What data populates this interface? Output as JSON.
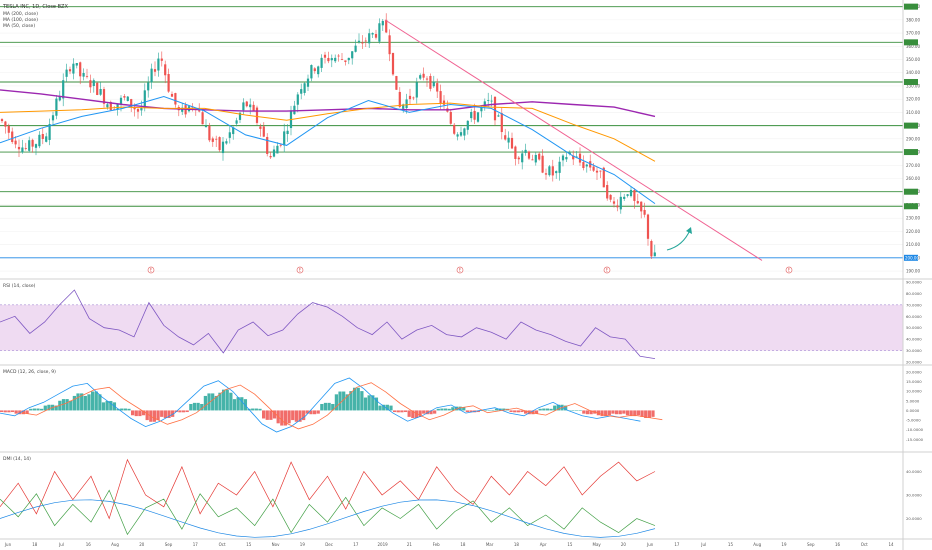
{
  "header": {
    "symbol_line": "TESLA INC, 1D, Close BZX",
    "ma_lines": [
      "MA (200, close)",
      "MA (100, close)",
      "MA (50, close)"
    ]
  },
  "indicators": {
    "rsi_label": "RSI (14, close)",
    "macd_label": "MACD (12, 26, close, 9)",
    "dmi_label": "DMI (14, 14)"
  },
  "colors": {
    "candle_up": "#26a69a",
    "candle_down": "#ef5350",
    "ma200": "#9c27b0",
    "ma100": "#ff9800",
    "ma50": "#2196f3",
    "support_lines": "#388e3c",
    "trendline": "#f06292",
    "arrow": "#26a69a",
    "rsi_band": "#e1bee7",
    "rsi_line": "#7e57c2",
    "current_price": "#1e88e5"
  },
  "chart_data": [
    {
      "type": "candlestick",
      "title": "TESLA INC, 1D, Close BZX",
      "x_ticks": [
        "Jun",
        "18",
        "Jul",
        "16",
        "Aug",
        "20",
        "Sep",
        "17",
        "Oct",
        "15",
        "Nov",
        "19",
        "Dec",
        "17",
        "2019",
        "21",
        "Feb",
        "18",
        "Mar",
        "18",
        "Apr",
        "15",
        "May",
        "20",
        "Jun",
        "17",
        "Jul",
        "15",
        "Aug",
        "19",
        "Sep",
        "16",
        "Oct",
        "14"
      ],
      "ylim": [
        187,
        392
      ],
      "y_ticks": [
        "390.00",
        "380.00",
        "370.00",
        "360.00",
        "350.00",
        "340.00",
        "330.00",
        "320.00",
        "310.00",
        "300.00",
        "290.00",
        "280.00",
        "270.00",
        "260.00",
        "250.00",
        "240.00",
        "230.00",
        "220.00",
        "210.00",
        "200.00",
        "190.00"
      ],
      "horizontal_levels": [
        390,
        363,
        333,
        300,
        280,
        250,
        239
      ],
      "current_price": 200.0,
      "current_price_label": "200.00",
      "series": [
        {
          "name": "MA (200, close)",
          "values": [
            327,
            324,
            320,
            316,
            313,
            312,
            311,
            311,
            312,
            313,
            312,
            312,
            316,
            318,
            316,
            314,
            307
          ]
        },
        {
          "name": "MA (100, close)",
          "values": [
            310,
            311,
            312,
            314,
            313,
            313,
            308,
            304,
            309,
            313,
            316,
            317,
            314,
            313,
            301,
            290,
            273
          ]
        },
        {
          "name": "MA (50, close)",
          "values": [
            287,
            298,
            307,
            313,
            322,
            311,
            293,
            285,
            306,
            319,
            310,
            316,
            313,
            297,
            277,
            263,
            241
          ]
        }
      ],
      "trendline": {
        "from": [
          "Dec",
          380
        ],
        "to": [
          "Jun",
          200
        ]
      },
      "event_markers": [
        "E",
        "E",
        "E",
        "E",
        "E"
      ]
    },
    {
      "type": "line",
      "title": "RSI (14, close)",
      "ylim": [
        20,
        90
      ],
      "y_ticks": [
        "90.0000",
        "80.0000",
        "70.0000",
        "60.0000",
        "50.0000",
        "40.0000",
        "30.0000",
        "20.0000"
      ],
      "band": [
        30,
        70
      ],
      "values": [
        55,
        60,
        45,
        55,
        70,
        83,
        58,
        50,
        48,
        42,
        72,
        52,
        42,
        35,
        45,
        28,
        48,
        55,
        43,
        48,
        62,
        72,
        68,
        60,
        50,
        44,
        55,
        40,
        48,
        52,
        44,
        42,
        50,
        46,
        40,
        55,
        48,
        44,
        38,
        34,
        50,
        42,
        40,
        25,
        23
      ]
    },
    {
      "type": "bar",
      "title": "MACD (12, 26, close, 9)",
      "ylim": [
        -20,
        22
      ],
      "y_ticks": [
        "20.0000",
        "15.0000",
        "10.0000",
        "5.0000",
        "0.0000",
        "-5.0000",
        "-10.0000",
        "-15.0000"
      ],
      "values": [
        -1,
        -2,
        1,
        3,
        6,
        9,
        10,
        5,
        1,
        -3,
        -6,
        -4,
        -1,
        4,
        9,
        11,
        7,
        1,
        -5,
        -8,
        -6,
        -2,
        4,
        10,
        12,
        8,
        3,
        -1,
        -4,
        -2,
        1,
        2,
        -1,
        0,
        1,
        -1,
        -2,
        1,
        3,
        0,
        -2,
        -3,
        -2,
        -3,
        -4
      ]
    },
    {
      "type": "line",
      "title": "DMI (14, 14)",
      "ylim": [
        13,
        47
      ],
      "y_ticks": [
        "40.0000",
        "30.0000",
        "20.0000"
      ],
      "values": [
        25,
        35,
        22,
        40,
        28,
        38,
        20,
        45,
        30,
        25,
        42,
        22,
        35,
        30,
        40,
        25,
        44,
        28,
        38,
        24,
        40,
        30,
        36,
        28,
        42,
        32,
        26,
        38,
        30,
        40,
        34,
        42,
        30,
        38,
        44,
        36,
        40
      ]
    }
  ]
}
